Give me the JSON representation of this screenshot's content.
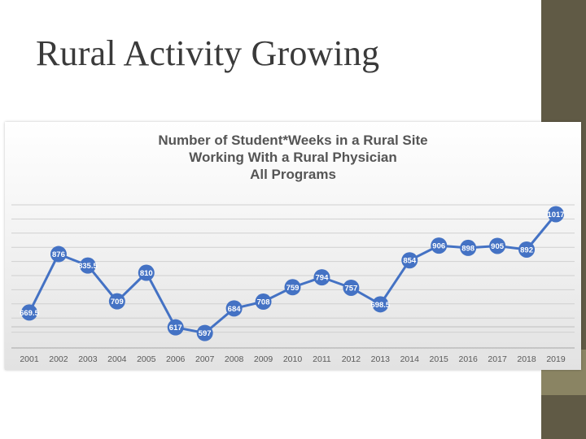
{
  "slide": {
    "title": "Rural Activity Growing"
  },
  "colors": {
    "series": "#4472c4",
    "sidebar": "#605a45",
    "sidebar_accent": "#8a8463",
    "gridline": "#d0d0d0"
  },
  "chart_data": {
    "type": "line",
    "title_lines": [
      "Number of Student*Weeks in a Rural Site",
      "Working With a Rural Physician",
      "All Programs"
    ],
    "xlabel": "",
    "ylabel": "",
    "grid": true,
    "legend": "none",
    "categories": [
      "2001",
      "2002",
      "2003",
      "2004",
      "2005",
      "2006",
      "2007",
      "2008",
      "2009",
      "2010",
      "2011",
      "2012",
      "2013",
      "2014",
      "2015",
      "2016",
      "2017",
      "2018",
      "2019"
    ],
    "series": [
      {
        "values": [
          669.5,
          876,
          835.5,
          709,
          810,
          617,
          597,
          684,
          708,
          759,
          794,
          757,
          698.5,
          854,
          906,
          898,
          905,
          892,
          1017
        ],
        "labels": [
          "669.5",
          "876",
          "835.5",
          "709",
          "810",
          "617",
          "597",
          "684",
          "708",
          "759",
          "794",
          "757",
          "698.5",
          "854",
          "906",
          "898",
          "905",
          "892",
          "1017"
        ]
      }
    ]
  }
}
